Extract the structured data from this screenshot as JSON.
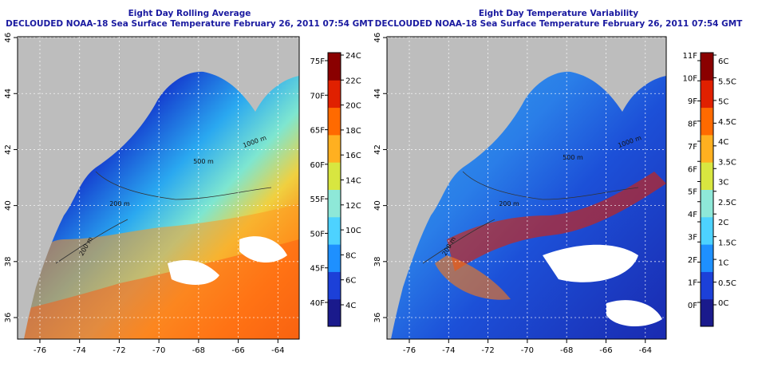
{
  "panels": [
    {
      "title_line1": "Eight Day Rolling Average",
      "title_line2": "DECLOUDED NOAA-18 Sea Surface Temperature February 26, 2011 07:54 GMT",
      "lon_ticks": [
        "-76",
        "-74",
        "-72",
        "-70",
        "-68",
        "-66",
        "-64"
      ],
      "lat_ticks": [
        "36",
        "38",
        "40",
        "42",
        "44",
        "46"
      ],
      "contour_labels": [
        "200 m",
        "200 m",
        "1000 m",
        "500 m"
      ],
      "colorbar": {
        "colors": [
          "#1a1a8c",
          "#1c40d8",
          "#1e90ff",
          "#4dd2ff",
          "#8ee8d8",
          "#d8e640",
          "#ffb020",
          "#ff6a00",
          "#e02000",
          "#8a0000"
        ],
        "left_labels": [
          "4C",
          "6C",
          "8C",
          "10C",
          "12C",
          "14C",
          "16C",
          "18C",
          "20C",
          "22C",
          "24C"
        ],
        "right_labels": [
          "40F",
          "45F",
          "50F",
          "55F",
          "60F",
          "65F",
          "70F",
          "75F"
        ]
      }
    },
    {
      "title_line1": "Eight Day Temperature Variability",
      "title_line2": "DECLOUDED NOAA-18 Sea Surface Temperature February 26, 2011 07:54 GMT",
      "lon_ticks": [
        "-76",
        "-74",
        "-72",
        "-70",
        "-68",
        "-66",
        "-64"
      ],
      "lat_ticks": [
        "36",
        "38",
        "40",
        "42",
        "44",
        "46"
      ],
      "contour_labels": [
        "200 m",
        "200 m",
        "1000 m",
        "500 m"
      ],
      "colorbar": {
        "colors": [
          "#1a1a8c",
          "#1c40d8",
          "#1e90ff",
          "#4dd2ff",
          "#8ee8d8",
          "#d8e640",
          "#ffb020",
          "#ff6a00",
          "#e02000",
          "#8a0000"
        ],
        "left_labels": [
          "0F",
          "1F",
          "2F",
          "3F",
          "4F",
          "5F",
          "6F",
          "7F",
          "8F",
          "9F",
          "10F",
          "11F"
        ],
        "right_labels": [
          "0C",
          "0.5C",
          "1C",
          "1.5C",
          "2C",
          "2.5C",
          "3C",
          "3.5C",
          "4C",
          "4.5C",
          "5C",
          "5.5C",
          "6C"
        ]
      }
    }
  ]
}
